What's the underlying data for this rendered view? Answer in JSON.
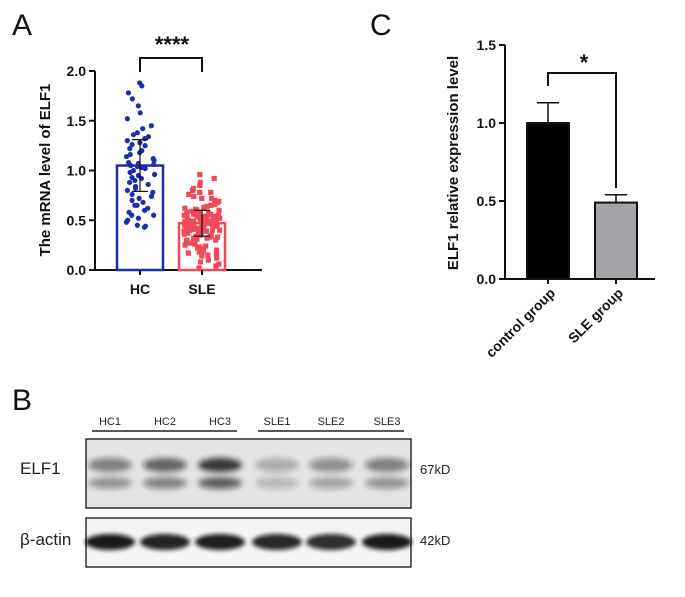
{
  "panel_labels": {
    "a": "A",
    "b": "B",
    "c": "C"
  },
  "chart_data": [
    {
      "type": "bar",
      "panel": "A",
      "ylabel": "The mRNA level of ELF1",
      "xlabel": "",
      "categories": [
        "HC",
        "SLE"
      ],
      "values": [
        1.05,
        0.47
      ],
      "ylim": [
        0,
        2.0
      ],
      "yticks": [
        "0.0",
        "0.5",
        "1.0",
        "1.5",
        "2.0"
      ],
      "significance": "****",
      "colors": {
        "HC": "#1a2fa8",
        "SLE": "#f04a58"
      },
      "scatter": {
        "HC": [
          1.88,
          1.85,
          1.78,
          1.72,
          1.65,
          1.58,
          1.52,
          1.45,
          1.42,
          1.38,
          1.36,
          1.34,
          1.32,
          1.3,
          1.28,
          1.26,
          1.25,
          1.22,
          1.2,
          1.18,
          1.16,
          1.14,
          1.12,
          1.1,
          1.08,
          1.07,
          1.06,
          1.05,
          1.04,
          1.03,
          1.02,
          1.0,
          0.98,
          0.96,
          0.95,
          0.93,
          0.92,
          0.9,
          0.88,
          0.86,
          0.84,
          0.82,
          0.8,
          0.78,
          0.76,
          0.74,
          0.72,
          0.7,
          0.68,
          0.65,
          0.62,
          0.6,
          0.58,
          0.55,
          0.52,
          0.5,
          0.48,
          0.45,
          0.44,
          0.43,
          0.55,
          0.65
        ],
        "SLE": [
          0.78,
          0.72,
          0.96,
          0.92,
          0.88,
          0.85,
          0.82,
          0.8,
          0.78,
          0.76,
          0.74,
          0.72,
          0.7,
          0.69,
          0.68,
          0.66,
          0.65,
          0.64,
          0.63,
          0.62,
          0.61,
          0.6,
          0.59,
          0.58,
          0.57,
          0.56,
          0.56,
          0.55,
          0.55,
          0.54,
          0.54,
          0.53,
          0.53,
          0.52,
          0.52,
          0.51,
          0.51,
          0.5,
          0.5,
          0.5,
          0.49,
          0.49,
          0.49,
          0.48,
          0.48,
          0.48,
          0.47,
          0.47,
          0.47,
          0.46,
          0.46,
          0.46,
          0.45,
          0.45,
          0.45,
          0.44,
          0.44,
          0.44,
          0.43,
          0.43,
          0.43,
          0.42,
          0.42,
          0.42,
          0.41,
          0.41,
          0.4,
          0.4,
          0.4,
          0.39,
          0.39,
          0.38,
          0.38,
          0.37,
          0.37,
          0.36,
          0.36,
          0.35,
          0.35,
          0.34,
          0.34,
          0.33,
          0.33,
          0.32,
          0.32,
          0.31,
          0.3,
          0.3,
          0.29,
          0.28,
          0.27,
          0.26,
          0.25,
          0.24,
          0.23,
          0.22,
          0.21,
          0.2,
          0.19,
          0.18,
          0.17,
          0.16,
          0.15,
          0.14,
          0.12,
          0.1,
          0.08,
          0.06,
          0.04,
          0.02,
          0.5,
          0.48,
          0.46,
          0.44,
          0.42,
          0.4,
          0.52,
          0.54,
          0.56,
          0.58,
          0.6,
          0.62
        ]
      }
    },
    {
      "type": "bar",
      "panel": "C",
      "ylabel": "ELF1 relative expression level",
      "xlabel": "",
      "categories": [
        "control group",
        "SLE group"
      ],
      "values": [
        1.0,
        0.49
      ],
      "errors": [
        0.13,
        0.05
      ],
      "ylim": [
        0,
        1.5
      ],
      "yticks": [
        "0.0",
        "0.5",
        "1.0",
        "1.5"
      ],
      "significance": "*",
      "colors": {
        "control group": "#000000",
        "SLE group": "#a3a3a8"
      }
    }
  ],
  "blot": {
    "lanes": [
      "HC1",
      "HC2",
      "HC3",
      "SLE1",
      "SLE2",
      "SLE3"
    ],
    "rows": [
      {
        "label": "ELF1",
        "kd": "67kD",
        "intensity": [
          0.55,
          0.7,
          0.95,
          0.3,
          0.45,
          0.55
        ]
      },
      {
        "label": "β-actin",
        "kd": "42kD",
        "intensity": [
          0.95,
          0.9,
          0.92,
          0.88,
          0.85,
          0.95
        ]
      }
    ]
  }
}
